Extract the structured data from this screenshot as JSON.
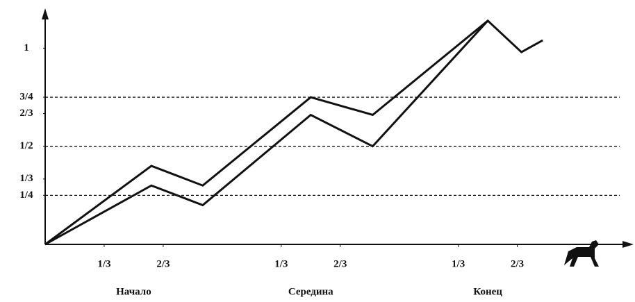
{
  "chart_data": {
    "type": "line",
    "xlim": [
      0,
      3.3
    ],
    "xticks": [
      {
        "value": 0.3333,
        "label": "1/3"
      },
      {
        "value": 0.6667,
        "label": "2/3"
      },
      {
        "value": 1.3333,
        "label": "1/3"
      },
      {
        "value": 1.6667,
        "label": "2/3"
      },
      {
        "value": 2.3333,
        "label": "1/3"
      },
      {
        "value": 2.6667,
        "label": "2/3"
      }
    ],
    "x_groups": [
      "Начало",
      "Середина",
      "Конец"
    ],
    "ylim": [
      0,
      1.15
    ],
    "yticks": [
      {
        "value": 0.25,
        "label": "1/4"
      },
      {
        "value": 0.3333,
        "label": "1/3"
      },
      {
        "value": 0.5,
        "label": "1/2"
      },
      {
        "value": 0.6667,
        "label": "2/3"
      },
      {
        "value": 0.75,
        "label": "3/4"
      },
      1
    ],
    "grid_lines": [
      0.25,
      0.5,
      0.75
    ],
    "series": [
      {
        "color": "#111111",
        "x": [
          0,
          0.6,
          0.89,
          1.5,
          1.85,
          2.5,
          2.69,
          2.81
        ],
        "values": [
          0,
          0.4,
          0.3,
          0.75,
          0.66,
          1.14,
          0.98,
          1.04
        ]
      },
      {
        "color": "#111111",
        "x": [
          0,
          0.6,
          0.89,
          1.5,
          1.85,
          2.5
        ],
        "values": [
          0,
          0.3,
          0.2,
          0.66,
          0.5,
          1.14
        ]
      }
    ]
  }
}
